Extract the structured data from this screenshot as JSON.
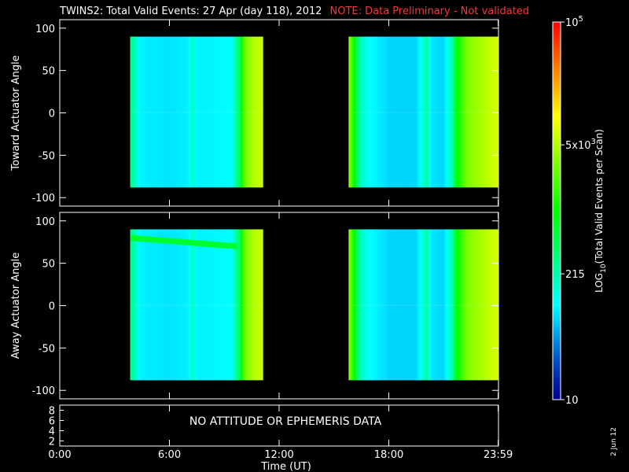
{
  "title": {
    "main": "TWINS2: Total Valid Events: 27 Apr (day 118), 2012",
    "note": "NOTE: Data Preliminary - Not validated"
  },
  "stamp": "2 Jun 12",
  "colors": {
    "background": "#000000",
    "axes": "#ffffff",
    "note": "#ff3333"
  },
  "chart_data": [
    {
      "type": "heatmap",
      "panel": "toward",
      "ylabel": "Toward Actuator Angle",
      "ylim": [
        -110,
        110
      ],
      "yticks": [
        100,
        50,
        0,
        -50,
        -100
      ],
      "xlim": [
        0,
        24
      ],
      "xticks": [
        0,
        6,
        12,
        18,
        23.983
      ],
      "data_blocks": [
        {
          "time_start_h": 3.85,
          "time_end_h": 11.1,
          "angle_min": -88,
          "angle_max": 90
        },
        {
          "time_start_h": 15.8,
          "time_end_h": 23.95,
          "angle_min": -88,
          "angle_max": 90
        }
      ],
      "time_profile_log10": [
        [
          3.85,
          2.45
        ],
        [
          4.15,
          2.25
        ],
        [
          4.4,
          1.95
        ],
        [
          6.0,
          1.9
        ],
        [
          7.0,
          1.95
        ],
        [
          7.3,
          2.2
        ],
        [
          7.55,
          1.95
        ],
        [
          9.4,
          2.0
        ],
        [
          9.8,
          2.6
        ],
        [
          10.1,
          3.4
        ],
        [
          10.6,
          3.7
        ],
        [
          11.1,
          3.8
        ],
        [
          15.8,
          3.6
        ],
        [
          16.15,
          2.9
        ],
        [
          16.45,
          2.25
        ],
        [
          17.0,
          2.0
        ],
        [
          18.0,
          1.85
        ],
        [
          19.5,
          1.85
        ],
        [
          20.1,
          2.35
        ],
        [
          20.35,
          1.9
        ],
        [
          21.0,
          1.85
        ],
        [
          21.45,
          2.3
        ],
        [
          21.7,
          2.95
        ],
        [
          22.3,
          3.5
        ],
        [
          23.95,
          3.85
        ]
      ]
    },
    {
      "type": "heatmap",
      "panel": "away",
      "ylabel": "Away Actuator Angle",
      "ylim": [
        -110,
        110
      ],
      "yticks": [
        100,
        50,
        0,
        -50,
        -100
      ],
      "xlim": [
        0,
        24
      ],
      "xticks": [
        0,
        6,
        12,
        18,
        23.983
      ],
      "data_blocks": [
        {
          "time_start_h": 3.85,
          "time_end_h": 11.1,
          "angle_min": -88,
          "angle_max": 90
        },
        {
          "time_start_h": 15.8,
          "time_end_h": 23.95,
          "angle_min": -88,
          "angle_max": 90
        }
      ],
      "enhanced_band": {
        "time_start_h": 3.85,
        "time_end_h": 9.7,
        "angle_start": 80,
        "angle_end": 70,
        "log10": 2.9
      },
      "time_profile_log10": [
        [
          3.85,
          2.45
        ],
        [
          4.15,
          2.25
        ],
        [
          4.4,
          1.95
        ],
        [
          6.0,
          1.9
        ],
        [
          7.0,
          1.95
        ],
        [
          7.3,
          2.2
        ],
        [
          7.55,
          1.95
        ],
        [
          9.4,
          2.0
        ],
        [
          9.8,
          2.6
        ],
        [
          10.1,
          3.4
        ],
        [
          10.6,
          3.7
        ],
        [
          11.1,
          3.8
        ],
        [
          15.8,
          3.6
        ],
        [
          16.15,
          2.9
        ],
        [
          16.45,
          2.25
        ],
        [
          17.0,
          2.0
        ],
        [
          18.0,
          1.85
        ],
        [
          19.5,
          1.85
        ],
        [
          20.1,
          2.35
        ],
        [
          20.35,
          1.9
        ],
        [
          21.0,
          1.85
        ],
        [
          21.45,
          2.3
        ],
        [
          21.7,
          2.95
        ],
        [
          22.3,
          3.5
        ],
        [
          23.95,
          3.85
        ]
      ]
    },
    {
      "type": "line",
      "panel": "attitude",
      "yticks": [
        8,
        6,
        4,
        2
      ],
      "ylim": [
        1,
        9
      ],
      "message": "NO ATTITUDE OR EPHEMERIS DATA",
      "xlabel": "Time (UT)",
      "xlim": [
        0,
        24
      ],
      "xticks": [
        0,
        6,
        12,
        18,
        23.983
      ],
      "xtick_labels": [
        "0:00",
        "6:00",
        "12:00",
        "18:00",
        "23:59"
      ]
    }
  ],
  "colorbar": {
    "title": "LOG10(Total Valid Events per Scan)",
    "title_base": "LOG",
    "title_sub": "10",
    "title_rest": "(Total Valid Events per Scan)",
    "range_log10": [
      1,
      5
    ],
    "ticks": [
      {
        "log10": 1,
        "label": "10"
      },
      {
        "log10": 2.3324,
        "label": "215"
      },
      {
        "log10": 3.699,
        "label": "5x10",
        "sup": "3"
      },
      {
        "log10": 5,
        "label": "10",
        "sup": "5"
      }
    ]
  }
}
